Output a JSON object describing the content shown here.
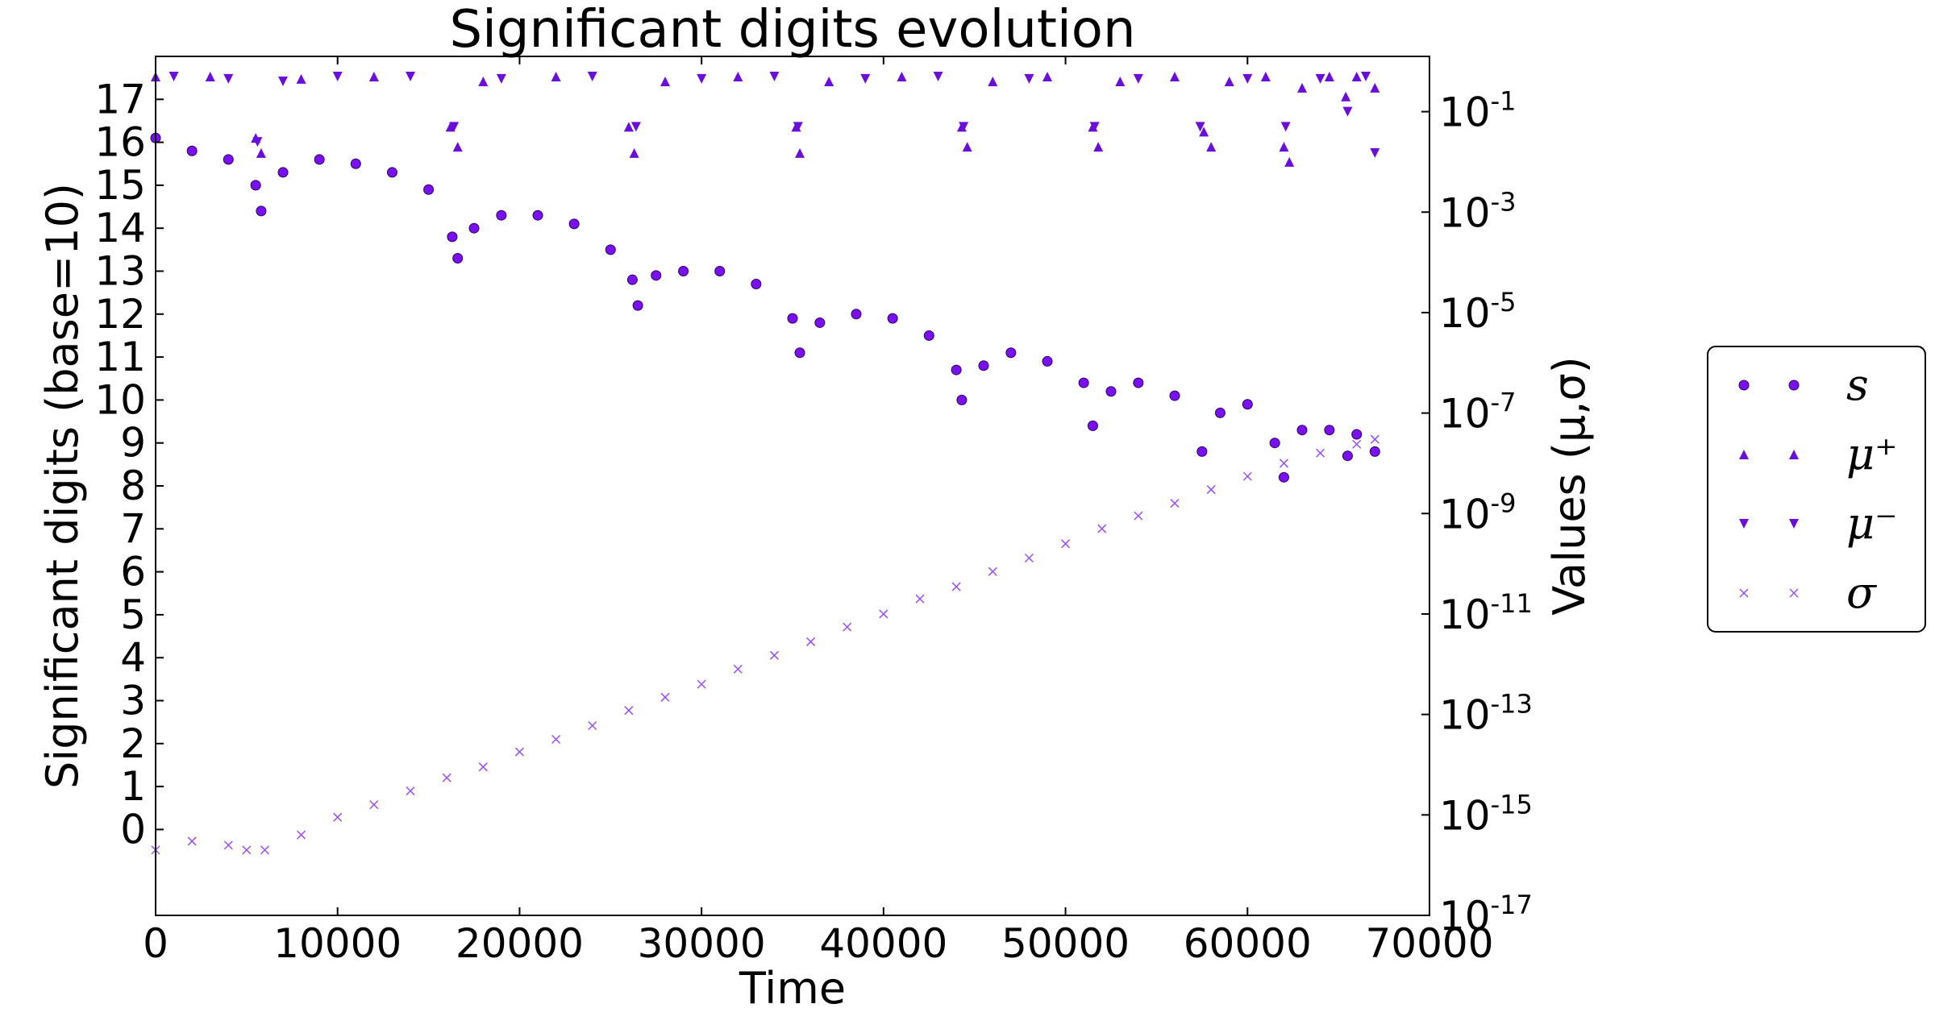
{
  "chart_data": {
    "type": "scatter",
    "title": "Significant digits evolution",
    "xlabel": "Time",
    "ylabel_left": "Significant digits (base=10)",
    "ylabel_right": "Values (μ,σ)",
    "xlim": [
      0,
      70000
    ],
    "ylim_left": [
      -2,
      18
    ],
    "ylim_right_log10": [
      -17,
      0.1
    ],
    "right_axis_scale": "log",
    "grid": false,
    "legend_placement": "right, outside the plot area",
    "x_ticks": [
      "0",
      "10000",
      "20000",
      "30000",
      "40000",
      "50000",
      "60000",
      "70000"
    ],
    "y_ticks_left": [
      "0",
      "1",
      "2",
      "3",
      "4",
      "5",
      "6",
      "7",
      "8",
      "9",
      "10",
      "11",
      "12",
      "13",
      "14",
      "15",
      "16",
      "17"
    ],
    "y_ticks_right": [
      {
        "base": "10",
        "exp": "-1",
        "log10": -1
      },
      {
        "base": "10",
        "exp": "-3",
        "log10": -3
      },
      {
        "base": "10",
        "exp": "-5",
        "log10": -5
      },
      {
        "base": "10",
        "exp": "-7",
        "log10": -7
      },
      {
        "base": "10",
        "exp": "-9",
        "log10": -9
      },
      {
        "base": "10",
        "exp": "-11",
        "log10": -11
      },
      {
        "base": "10",
        "exp": "-13",
        "log10": -13
      },
      {
        "base": "10",
        "exp": "-15",
        "log10": -15
      },
      {
        "base": "10",
        "exp": "-17",
        "log10": -17
      }
    ],
    "series": [
      {
        "name": "s",
        "marker": "circle",
        "axis": "left",
        "color": "#7a0ff0",
        "x": [
          0,
          2000,
          4000,
          5500,
          5800,
          7000,
          9000,
          11000,
          13000,
          15000,
          16300,
          16600,
          17500,
          19000,
          21000,
          23000,
          25000,
          26200,
          26500,
          27500,
          29000,
          31000,
          33000,
          35000,
          35400,
          36500,
          38500,
          40500,
          42500,
          44000,
          44300,
          45500,
          47000,
          49000,
          51000,
          51500,
          52500,
          54000,
          56000,
          57500,
          58500,
          60000,
          61500,
          62000,
          63000,
          64500,
          65500,
          66000,
          67000
        ],
        "y": [
          16.1,
          15.8,
          15.6,
          15.0,
          14.4,
          15.3,
          15.6,
          15.5,
          15.3,
          14.9,
          13.8,
          13.3,
          14.0,
          14.3,
          14.3,
          14.1,
          13.5,
          12.8,
          12.2,
          12.9,
          13.0,
          13.0,
          12.7,
          11.9,
          11.1,
          11.8,
          12.0,
          11.9,
          11.5,
          10.7,
          10.0,
          10.8,
          11.1,
          10.9,
          10.4,
          9.4,
          10.2,
          10.4,
          10.1,
          8.8,
          9.7,
          9.9,
          9.0,
          8.2,
          9.3,
          9.3,
          8.7,
          9.2,
          8.8
        ]
      },
      {
        "name": "μ⁺",
        "marker": "triangle-up",
        "axis": "right",
        "color": "#6a0fd8",
        "x": [
          0,
          3000,
          5500,
          5800,
          8000,
          12000,
          16200,
          16600,
          18000,
          22000,
          26000,
          26300,
          28000,
          32000,
          35200,
          35400,
          37000,
          41000,
          44300,
          44600,
          46000,
          49000,
          51500,
          51800,
          53000,
          56000,
          57600,
          58000,
          59000,
          61000,
          62000,
          62300,
          63000,
          64500,
          65400,
          66000,
          67000
        ],
        "y": [
          0.5,
          0.5,
          0.03,
          0.015,
          0.45,
          0.5,
          0.05,
          0.02,
          0.4,
          0.5,
          0.05,
          0.015,
          0.4,
          0.5,
          0.05,
          0.015,
          0.4,
          0.5,
          0.05,
          0.02,
          0.4,
          0.5,
          0.05,
          0.02,
          0.4,
          0.5,
          0.04,
          0.02,
          0.4,
          0.5,
          0.02,
          0.01,
          0.3,
          0.5,
          0.2,
          0.5,
          0.3
        ]
      },
      {
        "name": "μ⁻",
        "marker": "triangle-down",
        "axis": "right",
        "color": "#6a0fd8",
        "x": [
          1000,
          4000,
          5600,
          7000,
          10000,
          14000,
          16400,
          19000,
          24000,
          26400,
          30000,
          34000,
          35300,
          39000,
          43000,
          44400,
          48000,
          51600,
          54000,
          57400,
          60000,
          62100,
          64000,
          65500,
          66500,
          67000
        ],
        "y": [
          0.5,
          0.45,
          0.025,
          0.4,
          0.5,
          0.5,
          0.05,
          0.45,
          0.5,
          0.05,
          0.45,
          0.5,
          0.05,
          0.45,
          0.5,
          0.05,
          0.45,
          0.05,
          0.45,
          0.05,
          0.45,
          0.05,
          0.45,
          0.1,
          0.5,
          0.015
        ]
      },
      {
        "name": "σ",
        "marker": "x",
        "axis": "right",
        "color": "#9a50e8",
        "x": [
          0,
          2000,
          4000,
          5000,
          6000,
          8000,
          10000,
          12000,
          14000,
          16000,
          18000,
          20000,
          22000,
          24000,
          26000,
          28000,
          30000,
          32000,
          34000,
          36000,
          38000,
          40000,
          42000,
          44000,
          46000,
          48000,
          50000,
          52000,
          54000,
          56000,
          58000,
          60000,
          62000,
          64000,
          66000,
          67000
        ],
        "y": [
          2e-16,
          3e-16,
          2.5e-16,
          2e-16,
          2e-16,
          4e-16,
          9e-16,
          1.6e-15,
          3e-15,
          5.5e-15,
          9e-15,
          1.8e-14,
          3.2e-14,
          6e-14,
          1.2e-13,
          2.2e-13,
          4e-13,
          8e-13,
          1.5e-12,
          2.8e-12,
          5.5e-12,
          1e-11,
          2e-11,
          3.5e-11,
          7e-11,
          1.3e-10,
          2.5e-10,
          5e-10,
          9e-10,
          1.6e-09,
          3e-09,
          5.5e-09,
          1e-08,
          1.6e-08,
          2.4e-08,
          3e-08
        ]
      }
    ]
  }
}
